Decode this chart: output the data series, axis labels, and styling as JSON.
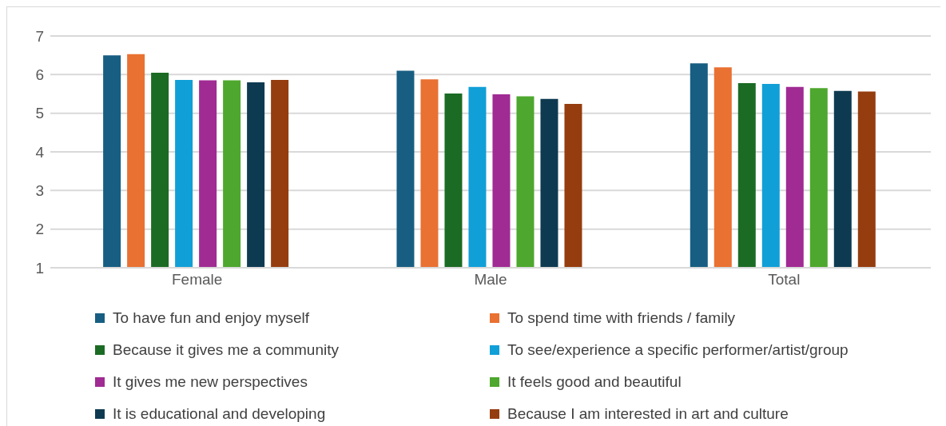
{
  "chart_data": {
    "type": "bar",
    "categories": [
      "Female",
      "Male",
      "Total"
    ],
    "series": [
      {
        "name": "To have fun and enjoy myself",
        "color": "#175e82",
        "values": [
          6.5,
          6.1,
          6.29
        ]
      },
      {
        "name": "To spend time with friends / family",
        "color": "#e97132",
        "values": [
          6.53,
          5.88,
          6.19
        ]
      },
      {
        "name": "Because it gives me a community",
        "color": "#1b6b24",
        "values": [
          6.05,
          5.51,
          5.78
        ]
      },
      {
        "name": "To see/experience a specific performer/artist/group",
        "color": "#119fd7",
        "values": [
          5.86,
          5.68,
          5.76
        ]
      },
      {
        "name": "It gives me new perspectives",
        "color": "#a02b93",
        "values": [
          5.85,
          5.49,
          5.68
        ]
      },
      {
        "name": "It feels good and beautiful",
        "color": "#4ea72e",
        "values": [
          5.85,
          5.44,
          5.65
        ]
      },
      {
        "name": "It is educational and developing",
        "color": "#0e3a51",
        "values": [
          5.8,
          5.37,
          5.58
        ]
      },
      {
        "name": "Because I am interested in art and culture",
        "color": "#953d0f",
        "values": [
          5.86,
          5.24,
          5.56
        ]
      }
    ],
    "ylim": [
      1,
      7
    ],
    "yticks": [
      1,
      2,
      3,
      4,
      5,
      6,
      7
    ],
    "grid": "y",
    "legend": "bottom"
  }
}
